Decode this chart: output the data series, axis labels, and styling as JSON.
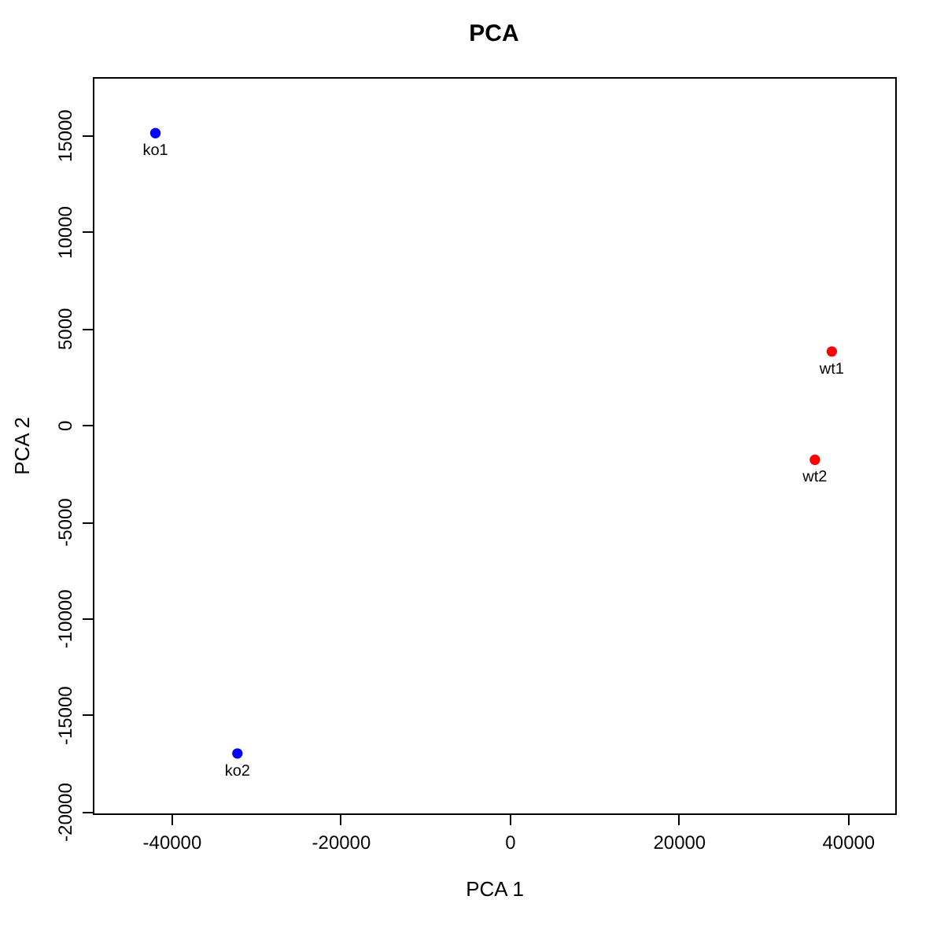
{
  "chart_data": {
    "type": "scatter",
    "title": "PCA",
    "xlabel": "PCA 1",
    "ylabel": "PCA 2",
    "xlim": [
      -49300,
      45600
    ],
    "xticks": [
      -40000,
      -20000,
      0,
      20000,
      40000
    ],
    "ylim": [
      -20100,
      18000
    ],
    "yticks": [
      -20000,
      -15000,
      -10000,
      -5000,
      0,
      5000,
      10000,
      15000
    ],
    "grid": false,
    "marker": "circle",
    "series": [
      {
        "color": "#0000ff",
        "x": [
          -41900,
          -32200
        ],
        "values": [
          15100,
          -17000
        ]
      },
      {
        "color": "#ff0000",
        "x": [
          38100,
          36100
        ],
        "values": [
          3800,
          -1800
        ]
      }
    ],
    "annotations": [
      {
        "text": "ko1",
        "x": -41900,
        "y": 15100
      },
      {
        "text": "ko2",
        "x": -32200,
        "y": -17000
      },
      {
        "text": "wt1",
        "x": 38100,
        "y": 3800
      },
      {
        "text": "wt2",
        "x": 36100,
        "y": -1800
      }
    ]
  }
}
